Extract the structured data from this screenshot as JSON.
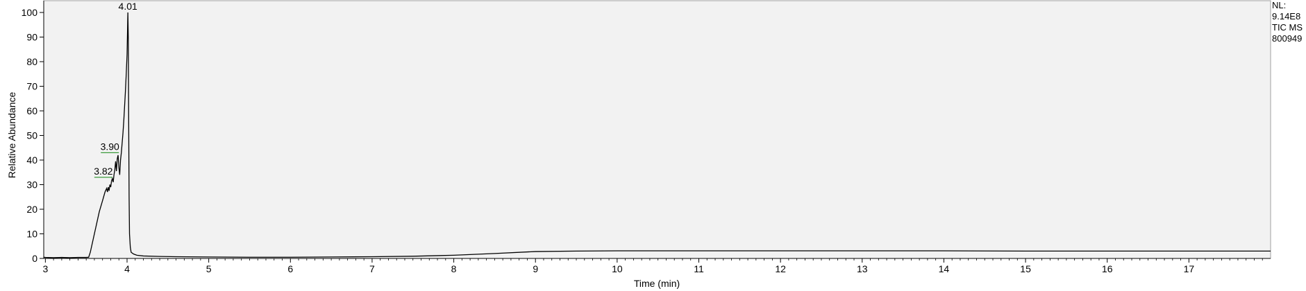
{
  "chart_data": {
    "type": "line",
    "title": "",
    "xlabel": "Time (min)",
    "ylabel": "Relative Abundance",
    "xlim": [
      2.98,
      18.0
    ],
    "ylim": [
      0,
      100
    ],
    "x_ticks": [
      3,
      4,
      5,
      6,
      7,
      8,
      9,
      10,
      11,
      12,
      13,
      14,
      15,
      16,
      17
    ],
    "x_tick_labels": [
      "3",
      "4",
      "5",
      "6",
      "7",
      "8",
      "9",
      "10",
      "11",
      "12",
      "13",
      "14",
      "15",
      "16",
      "17"
    ],
    "y_ticks": [
      0,
      10,
      20,
      30,
      40,
      50,
      60,
      70,
      80,
      90,
      100
    ],
    "y_tick_labels": [
      "0",
      "10",
      "20",
      "30",
      "40",
      "50",
      "60",
      "70",
      "80",
      "90",
      "100"
    ],
    "grid": false,
    "colors": {
      "plot_background": "#f2f2f2",
      "trace": "#000000",
      "peak_marker": "#3a9a3a"
    },
    "series": [
      {
        "x": [
          2.98,
          3.0,
          3.1,
          3.2,
          3.3,
          3.4,
          3.5,
          3.53,
          3.55,
          3.58,
          3.62,
          3.66,
          3.7,
          3.73,
          3.75,
          3.76,
          3.77,
          3.78,
          3.79,
          3.8,
          3.81,
          3.82,
          3.83,
          3.84,
          3.85,
          3.86,
          3.87,
          3.88,
          3.89,
          3.9,
          3.91,
          3.92,
          3.93,
          3.94,
          3.95,
          3.96,
          3.97,
          3.98,
          3.99,
          4.0,
          4.01,
          4.015,
          4.02,
          4.025,
          4.03,
          4.04,
          4.05,
          4.08,
          4.12,
          4.2,
          4.4,
          4.6,
          5.0,
          5.5,
          6.0,
          6.5,
          7.0,
          7.5,
          8.0,
          8.5,
          9.0,
          9.5,
          10.0,
          11.0,
          12.0,
          13.0,
          14.0,
          15.0,
          16.0,
          17.0,
          18.0
        ],
        "y": [
          0.5,
          0.4,
          0.3,
          0.4,
          0.3,
          0.4,
          0.4,
          0.5,
          2.5,
          7.0,
          13.0,
          19.0,
          23.5,
          27.0,
          28.5,
          27.0,
          29.0,
          27.5,
          30.0,
          29.0,
          31.5,
          32.5,
          31.0,
          34.0,
          36.0,
          39.5,
          35.5,
          40.5,
          42.0,
          37.0,
          34.0,
          40.0,
          43.0,
          47.0,
          51.0,
          56.0,
          62.0,
          68.0,
          75.0,
          83.0,
          100.0,
          90.0,
          55.0,
          25.0,
          10.0,
          4.5,
          2.5,
          1.8,
          1.3,
          1.0,
          0.8,
          0.7,
          0.6,
          0.5,
          0.5,
          0.6,
          0.7,
          0.9,
          1.3,
          2.0,
          2.8,
          3.0,
          3.1,
          3.1,
          3.1,
          3.1,
          3.1,
          3.0,
          3.0,
          3.0,
          3.0
        ]
      }
    ],
    "annotations": [
      {
        "label": "4.01",
        "x": 4.01,
        "y": 100.0
      },
      {
        "label": "3.90",
        "x": 3.9,
        "y": 43.0
      },
      {
        "label": "3.82",
        "x": 3.82,
        "y": 33.0
      }
    ],
    "info_lines": [
      "NL:",
      "9.14E8",
      "TIC  MS",
      "800949"
    ]
  }
}
